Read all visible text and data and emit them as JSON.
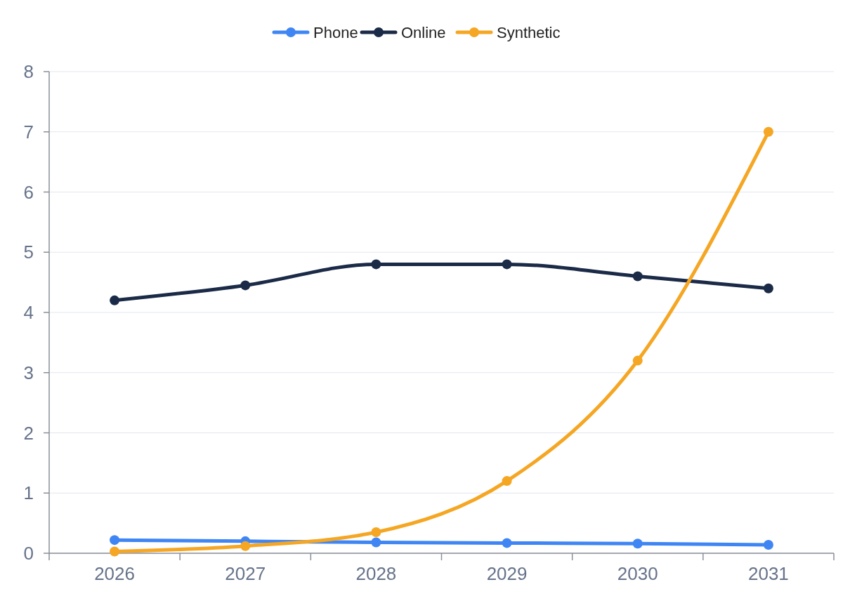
{
  "chart_data": {
    "type": "line",
    "categories": [
      "2026",
      "2027",
      "2028",
      "2029",
      "2030",
      "2031"
    ],
    "series": [
      {
        "name": "Phone",
        "color": "#3f86f4",
        "values": [
          0.22,
          0.2,
          0.18,
          0.17,
          0.16,
          0.14
        ]
      },
      {
        "name": "Online",
        "color": "#1b2a47",
        "values": [
          4.2,
          4.45,
          4.8,
          4.8,
          4.6,
          4.4
        ]
      },
      {
        "name": "Synthetic",
        "color": "#f5a623",
        "values": [
          0.03,
          0.12,
          0.35,
          1.2,
          3.2,
          7.0
        ]
      }
    ],
    "ylim": [
      0,
      8
    ],
    "yticks": [
      0,
      1,
      2,
      3,
      4,
      5,
      6,
      7,
      8
    ],
    "grid": "y",
    "legend": "top",
    "marker": "circle",
    "line_style": "solid"
  }
}
